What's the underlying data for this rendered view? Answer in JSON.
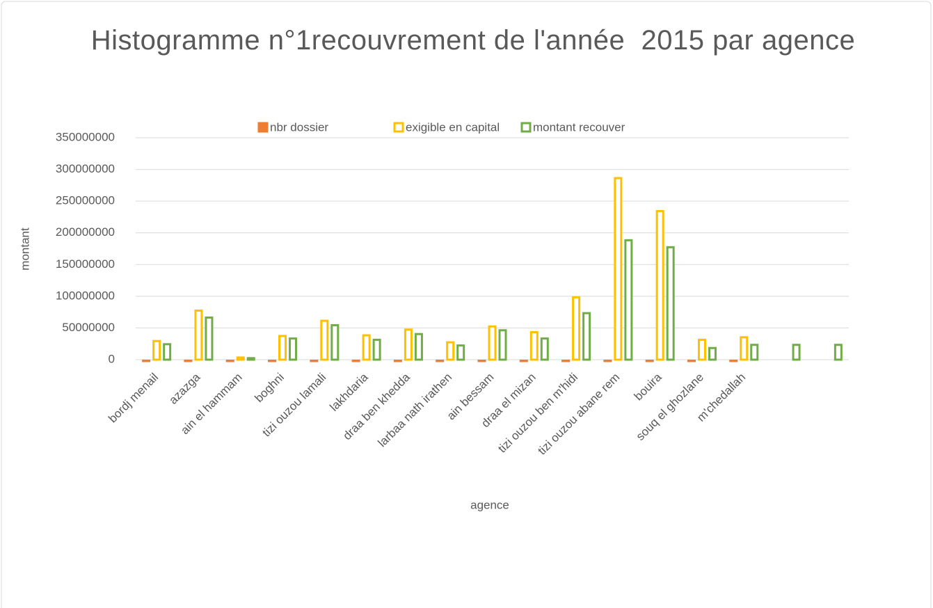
{
  "chart_data": {
    "type": "bar",
    "title": "Histogramme n°1recouvrement de l'année  2015 par agence",
    "x_label": "agence",
    "y_label": "montant",
    "categories": [
      "bordj menail",
      "azazga",
      "ain el hammam",
      "boghni",
      "tizi ouzou lamali",
      "lakhdaria",
      "draa ben khedda",
      "larbaa nath irathen",
      "ain bessam",
      "draa el mizan",
      "tizi ouzou ben m'hidi",
      "tizi ouzou abane rem",
      "bouira",
      "souq el ghozlane",
      "m'chedallah",
      null,
      null
    ],
    "series": [
      {
        "name": "nbr dossier",
        "color": "#ed7d31",
        "values": [
          500,
          500,
          500,
          500,
          500,
          500,
          500,
          500,
          500,
          500,
          500,
          500,
          500,
          500,
          500,
          null,
          null
        ]
      },
      {
        "name": "exigible en capital",
        "color": "#ffc000",
        "values": [
          31000000,
          79000000,
          5000000,
          39000000,
          63000000,
          40000000,
          49000000,
          29000000,
          54000000,
          45000000,
          100000000,
          288000000,
          236000000,
          33000000,
          37000000,
          null,
          null
        ]
      },
      {
        "name": "montant recouver",
        "color": "#70ad47",
        "values": [
          26000000,
          68000000,
          4000000,
          35000000,
          56000000,
          33000000,
          42000000,
          24000000,
          48000000,
          35000000,
          75000000,
          190000000,
          179000000,
          20000000,
          25000000,
          25000000,
          25000000
        ]
      }
    ],
    "ylim": [
      0,
      350000000
    ],
    "yticks": [
      0,
      50000000,
      100000000,
      150000000,
      200000000,
      250000000,
      300000000,
      350000000
    ],
    "grid": true,
    "legend": "top"
  }
}
